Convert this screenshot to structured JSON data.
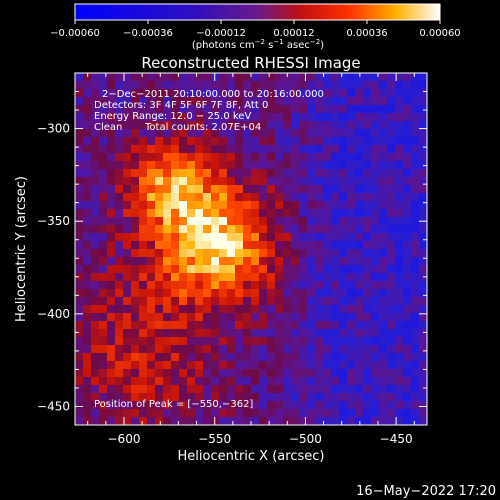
{
  "chart_data": {
    "type": "heatmap",
    "title": "Reconstructed RHESSI Image",
    "xlabel": "Heliocentric X (arcsec)",
    "ylabel": "Heliocentric Y (arcsec)",
    "xlim": [
      -627,
      -433
    ],
    "ylim": [
      -460,
      -270
    ],
    "x_ticks": [
      -600,
      -550,
      -500,
      -450
    ],
    "x_tick_labels": [
      "−600",
      "−550",
      "−500",
      "−450"
    ],
    "y_ticks": [
      -450,
      -400,
      -350,
      -300
    ],
    "y_tick_labels": [
      "−450",
      "−400",
      "−350",
      "−300"
    ],
    "colorbar": {
      "min": -0.0006,
      "max": 0.0006,
      "ticks": [
        -0.0006,
        -0.00036,
        -0.00012,
        0.00012,
        0.00036,
        0.0006
      ],
      "tick_labels": [
        "−0.00060",
        "−0.00036",
        "−0.00012",
        "0.00012",
        "0.00036",
        "0.00060"
      ],
      "units_main": "(photons cm",
      "units_exp1": "−2",
      "units_mid": " s",
      "units_exp2": "−1",
      "units_mid2": " asec",
      "units_exp3": "−2",
      "units_end": ")"
    },
    "annotations": {
      "time_range": "2−Dec−2011 20:10:00.000 to 20:16:00.000",
      "detectors": "Detectors: 3F 4F 5F 6F 7F 8F, Att 0",
      "energy": "Energy Range: 12.0 − 25.0 keV",
      "clean": "Clean",
      "total_counts": "Total counts: 2.07E+04",
      "peak": "Position of Peak = [−550,−362]"
    },
    "peak": {
      "x": -550,
      "y": -362,
      "value": 0.0006
    },
    "grid": false,
    "legend": "none"
  },
  "footer": {
    "timestamp": "16−May−2022 17:20"
  },
  "colors": {
    "background": "#000000",
    "negative": "#1010ff",
    "zero": "#5a1a8a",
    "mid": "#e02000",
    "high": "#ffa000",
    "peak": "#ffffff"
  }
}
